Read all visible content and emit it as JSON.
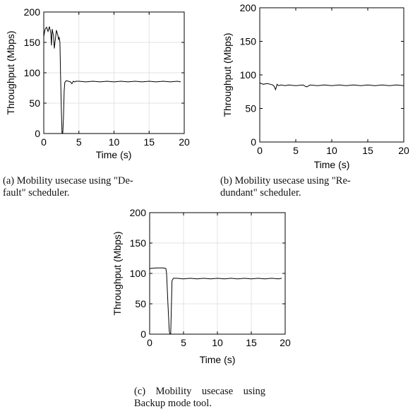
{
  "chart_data": [
    {
      "type": "line",
      "id": "a",
      "xlabel": "Time (s)",
      "ylabel": "Throughput (Mbps)",
      "xlim": [
        0,
        20
      ],
      "ylim": [
        0,
        200
      ],
      "xticks": [
        0,
        5,
        10,
        15,
        20
      ],
      "yticks": [
        0,
        50,
        100,
        150,
        200
      ],
      "grid": true,
      "caption_line1": "(a) Mobility usecase using \"De-",
      "caption_line2": "fault\" scheduler.",
      "series": [
        {
          "x": [
            0,
            0.2,
            0.4,
            0.6,
            0.8,
            1.0,
            1.1,
            1.2,
            1.4,
            1.5,
            1.6,
            1.8,
            2.0,
            2.1,
            2.2,
            2.3,
            2.4,
            2.5,
            2.6,
            2.7,
            2.8,
            2.9,
            3.0,
            3.2,
            3.5,
            3.8,
            4.0,
            4.2,
            4.4,
            4.6,
            5,
            6,
            7,
            8,
            9,
            10,
            11,
            12,
            13,
            14,
            15,
            16,
            17,
            18,
            19,
            19.5
          ],
          "y": [
            160,
            172,
            175,
            168,
            176,
            165,
            145,
            172,
            160,
            140,
            150,
            170,
            162,
            155,
            158,
            150,
            90,
            40,
            0,
            0,
            25,
            70,
            84,
            87,
            86,
            85,
            82,
            86,
            85,
            86,
            86,
            85,
            86,
            85,
            86,
            85,
            86,
            85,
            86,
            85,
            86,
            85,
            86,
            85,
            86,
            85
          ]
        }
      ]
    },
    {
      "type": "line",
      "id": "b",
      "xlabel": "Time (s)",
      "ylabel": "Throughput (Mbps)",
      "xlim": [
        0,
        20
      ],
      "ylim": [
        0,
        200
      ],
      "xticks": [
        0,
        5,
        10,
        15,
        20
      ],
      "yticks": [
        0,
        50,
        100,
        150,
        200
      ],
      "grid": false,
      "caption_line1": "(b) Mobility usecase using \"Re-",
      "caption_line2": "dundant\" scheduler.",
      "series": [
        {
          "x": [
            0,
            0.5,
            1.0,
            1.5,
            1.8,
            2.0,
            2.2,
            2.4,
            2.6,
            3.0,
            3.5,
            4,
            5,
            6,
            6.5,
            7,
            8,
            9,
            10,
            11,
            12,
            13,
            14,
            15,
            16,
            17,
            18,
            19,
            20
          ],
          "y": [
            88,
            86,
            87,
            86,
            85,
            83,
            78,
            86,
            84,
            85,
            84,
            85,
            84,
            85,
            82,
            85,
            84,
            85,
            84,
            85,
            84,
            85,
            84,
            85,
            84,
            85,
            84,
            85,
            84
          ]
        }
      ]
    },
    {
      "type": "line",
      "id": "c",
      "xlabel": "Time (s)",
      "ylabel": "Throughput (Mbps)",
      "xlim": [
        0,
        20
      ],
      "ylim": [
        0,
        200
      ],
      "xticks": [
        0,
        5,
        10,
        15,
        20
      ],
      "yticks": [
        0,
        50,
        100,
        150,
        200
      ],
      "grid": true,
      "caption_line1": "(c)    Mobility    usecase    using",
      "caption_line2": "Backup mode tool.",
      "series": [
        {
          "x": [
            0,
            1,
            2,
            2.4,
            2.5,
            2.7,
            2.9,
            3.0,
            3.1,
            3.2,
            3.3,
            3.5,
            4,
            5,
            6,
            7,
            8,
            9,
            10,
            11,
            12,
            13,
            14,
            15,
            16,
            17,
            18,
            19,
            19.5
          ],
          "y": [
            108,
            109,
            109,
            108,
            100,
            50,
            5,
            0,
            0,
            40,
            88,
            92,
            92,
            91,
            92,
            91,
            92,
            91,
            92,
            91,
            92,
            91,
            92,
            91,
            92,
            91,
            92,
            91,
            92
          ]
        }
      ]
    }
  ]
}
